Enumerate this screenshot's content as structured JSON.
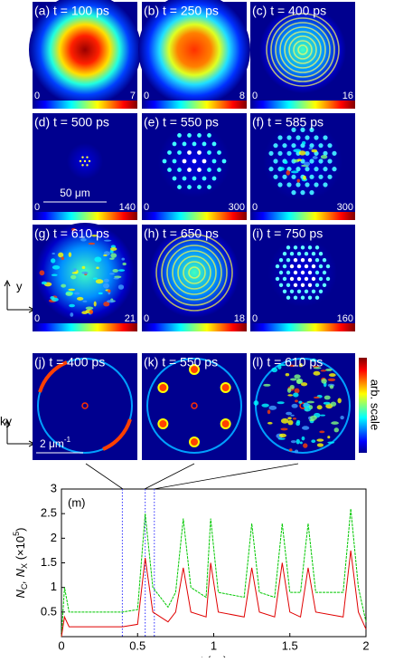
{
  "panels": [
    {
      "label": "(a) t = 100 ps",
      "min": 0,
      "max": 7
    },
    {
      "label": "(b) t = 250 ps",
      "min": 0,
      "max": 8
    },
    {
      "label": "(c) t = 400 ps",
      "min": 0,
      "max": 16
    },
    {
      "label": "(d) t = 500 ps",
      "min": 0,
      "max": 140
    },
    {
      "label": "(e) t = 550 ps",
      "min": 0,
      "max": 300
    },
    {
      "label": "(f) t = 585 ps",
      "min": 0,
      "max": 300
    },
    {
      "label": "(g) t = 610 ps",
      "min": 0,
      "max": 21
    },
    {
      "label": "(h) t = 650 ps",
      "min": 0,
      "max": 18
    },
    {
      "label": "(i) t = 750 ps",
      "min": 0,
      "max": 160
    }
  ],
  "k_panels": [
    {
      "label": "(j) t = 400 ps"
    },
    {
      "label": "(k) t = 550 ps"
    },
    {
      "label": "(l) t = 610 ps"
    }
  ],
  "scale_bar_real": "50 μm",
  "scale_bar_k": "2 μm",
  "scale_bar_k_exp": "-1",
  "axis_x": "x",
  "axis_y": "y",
  "axis_kx": "kx",
  "axis_ky": "ky",
  "colorbar_label": "arb. scale",
  "chart_data": {
    "type": "line",
    "panel_label": "(m)",
    "x_label": "t (ns)",
    "y_label_parts": [
      "N",
      "C",
      ", N",
      "X",
      " (×10",
      "5",
      ")"
    ],
    "x": [
      0,
      0.02,
      0.05,
      0.4,
      0.5,
      0.55,
      0.6,
      0.7,
      0.75,
      0.8,
      0.85,
      0.95,
      0.98,
      1.03,
      1.2,
      1.25,
      1.3,
      1.4,
      1.45,
      1.5,
      1.57,
      1.62,
      1.67,
      1.85,
      1.9,
      1.95,
      2.0
    ],
    "series": [
      {
        "color": "#00c800",
        "values": [
          0,
          1.0,
          0.5,
          0.5,
          0.55,
          2.5,
          1.0,
          0.6,
          0.9,
          2.4,
          1.0,
          0.8,
          2.4,
          0.9,
          0.8,
          2.3,
          0.9,
          0.8,
          2.3,
          0.9,
          0.9,
          2.3,
          0.9,
          0.9,
          2.6,
          1.0,
          0.3
        ]
      },
      {
        "color": "#e00000",
        "values": [
          0,
          0.4,
          0.2,
          0.2,
          0.25,
          1.6,
          0.5,
          0.3,
          0.5,
          1.4,
          0.5,
          0.4,
          1.5,
          0.5,
          0.4,
          1.4,
          0.5,
          0.4,
          1.5,
          0.5,
          0.4,
          1.4,
          0.5,
          0.4,
          1.75,
          0.5,
          0.15
        ]
      }
    ],
    "marker_lines": [
      0.4,
      0.55,
      0.61
    ],
    "marker_color": "#3030ff",
    "xlim": [
      0,
      2
    ],
    "ylim": [
      0,
      3
    ],
    "xticks": [
      0,
      0.5,
      1,
      1.5,
      2
    ],
    "yticks": [
      0.5,
      1,
      1.5,
      2,
      2.5,
      3
    ]
  }
}
